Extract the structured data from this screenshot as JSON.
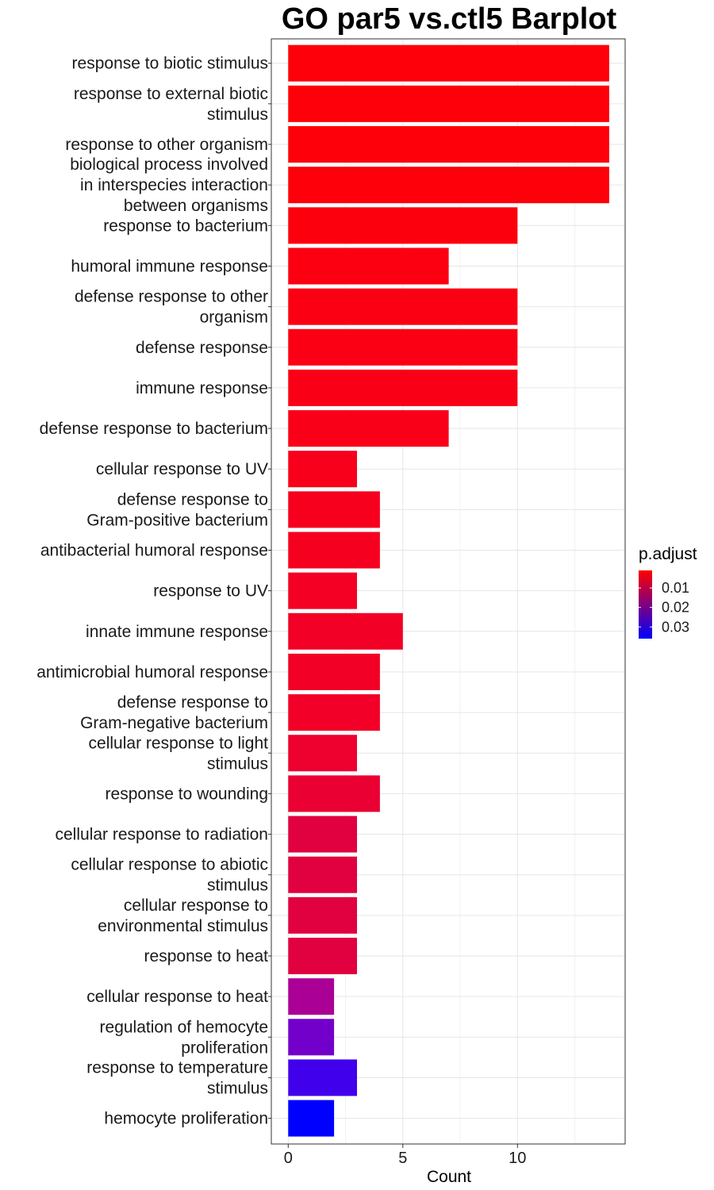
{
  "chart_data": {
    "type": "bar",
    "orientation": "horizontal",
    "title": "GO par5 vs.ctl5 Barplot",
    "xlabel": "Count",
    "ylabel": "",
    "xlim": [
      0,
      14
    ],
    "xticks": [
      0,
      5,
      10
    ],
    "grid": true,
    "legend": {
      "title": "p.adjust",
      "placement": "right",
      "type": "colorbar",
      "range": [
        0.001,
        0.036
      ],
      "low_color": "#ff0000",
      "high_color": "#0000ff",
      "ticks": [
        {
          "value": 0.01,
          "label": "0.01"
        },
        {
          "value": 0.02,
          "label": "0.02"
        },
        {
          "value": 0.03,
          "label": "0.03"
        }
      ]
    },
    "categories": [
      [
        "response to biotic stimulus"
      ],
      [
        "response to external biotic",
        "stimulus"
      ],
      [
        "response to other organism"
      ],
      [
        "biological process involved",
        "in interspecies interaction",
        "between organisms"
      ],
      [
        "response to bacterium"
      ],
      [
        "humoral immune response"
      ],
      [
        "defense response to other",
        "organism"
      ],
      [
        "defense response"
      ],
      [
        "immune response"
      ],
      [
        "defense response to bacterium"
      ],
      [
        "cellular response to UV"
      ],
      [
        "defense response to",
        "Gram-positive bacterium"
      ],
      [
        "antibacterial humoral response"
      ],
      [
        "response to UV"
      ],
      [
        "innate immune response"
      ],
      [
        "antimicrobial humoral response"
      ],
      [
        "defense response to",
        "Gram-negative bacterium"
      ],
      [
        "cellular response to light",
        "stimulus"
      ],
      [
        "response to wounding"
      ],
      [
        "cellular response to radiation"
      ],
      [
        "cellular response to abiotic",
        "stimulus"
      ],
      [
        "cellular response to",
        "environmental stimulus"
      ],
      [
        "response to heat"
      ],
      [
        "cellular response to heat"
      ],
      [
        "regulation of hemocyte",
        "proliferation"
      ],
      [
        "response to temperature",
        "stimulus"
      ],
      [
        "hemocyte proliferation"
      ]
    ],
    "values": [
      14,
      14,
      14,
      14,
      10,
      7,
      10,
      10,
      10,
      7,
      3,
      4,
      4,
      3,
      5,
      4,
      4,
      3,
      4,
      3,
      3,
      3,
      3,
      2,
      2,
      3,
      2
    ],
    "colors": [
      "#fe0009",
      "#fe0009",
      "#fe0009",
      "#fe0009",
      "#fd000d",
      "#fc0012",
      "#fb0012",
      "#fb0014",
      "#fa0016",
      "#f90018",
      "#f8001b",
      "#f6001e",
      "#f60020",
      "#f40024",
      "#f20026",
      "#f20026",
      "#f20027",
      "#ee002f",
      "#ea0033",
      "#e10040",
      "#e10040",
      "#e10040",
      "#e10040",
      "#ab0095",
      "#7300ca",
      "#4100eb",
      "#0000ff"
    ]
  }
}
